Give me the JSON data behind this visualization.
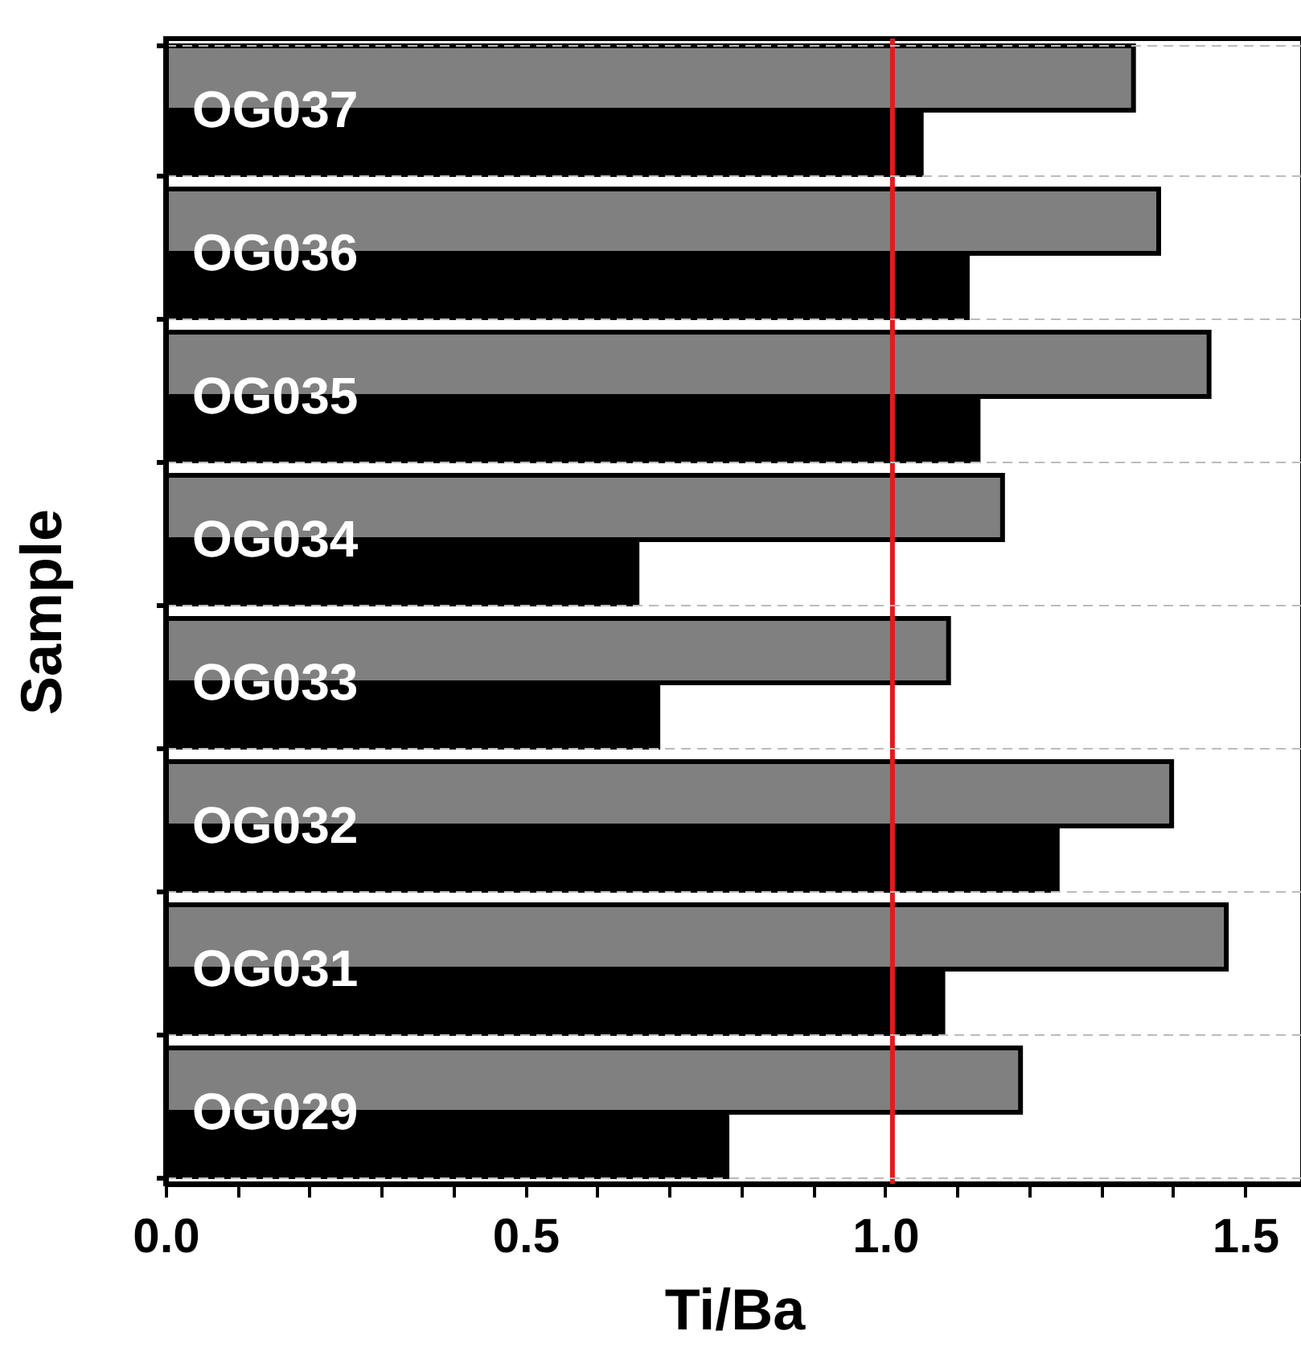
{
  "chart_data": {
    "type": "bar",
    "orientation": "horizontal",
    "xlabel": "Ti/Ba",
    "ylabel": "Sample",
    "categories": [
      "OG037",
      "OG036",
      "OG035",
      "OG034",
      "OG033",
      "OG032",
      "OG031",
      "OG029"
    ],
    "series": [
      {
        "color": "#808080",
        "values": [
          1.345,
          1.38,
          1.45,
          1.163,
          1.088,
          1.398,
          1.474,
          1.188
        ]
      },
      {
        "color": "#000000",
        "values": [
          1.05,
          1.114,
          1.129,
          0.655,
          0.684,
          1.239,
          1.08,
          0.78
        ]
      }
    ],
    "xlim": [
      0,
      1.58
    ],
    "xticks": [
      {
        "value": 0,
        "label": "0.0"
      },
      {
        "value": 0.1,
        "label": null
      },
      {
        "value": 0.2,
        "label": null
      },
      {
        "value": 0.3,
        "label": null
      },
      {
        "value": 0.4,
        "label": null
      },
      {
        "value": 0.5,
        "label": "0.5"
      },
      {
        "value": 0.6,
        "label": null
      },
      {
        "value": 0.7,
        "label": null
      },
      {
        "value": 0.8,
        "label": null
      },
      {
        "value": 0.9,
        "label": null
      },
      {
        "value": 1,
        "label": "1.0"
      },
      {
        "value": 1.1,
        "label": null
      },
      {
        "value": 1.2,
        "label": null
      },
      {
        "value": 1.3,
        "label": null
      },
      {
        "value": 1.4,
        "label": null
      },
      {
        "value": 1.5,
        "label": "1.5"
      }
    ],
    "ref_lines": [
      {
        "axis": "x",
        "value": 1.01,
        "color": "#e31a1c"
      }
    ],
    "grid": "y"
  }
}
